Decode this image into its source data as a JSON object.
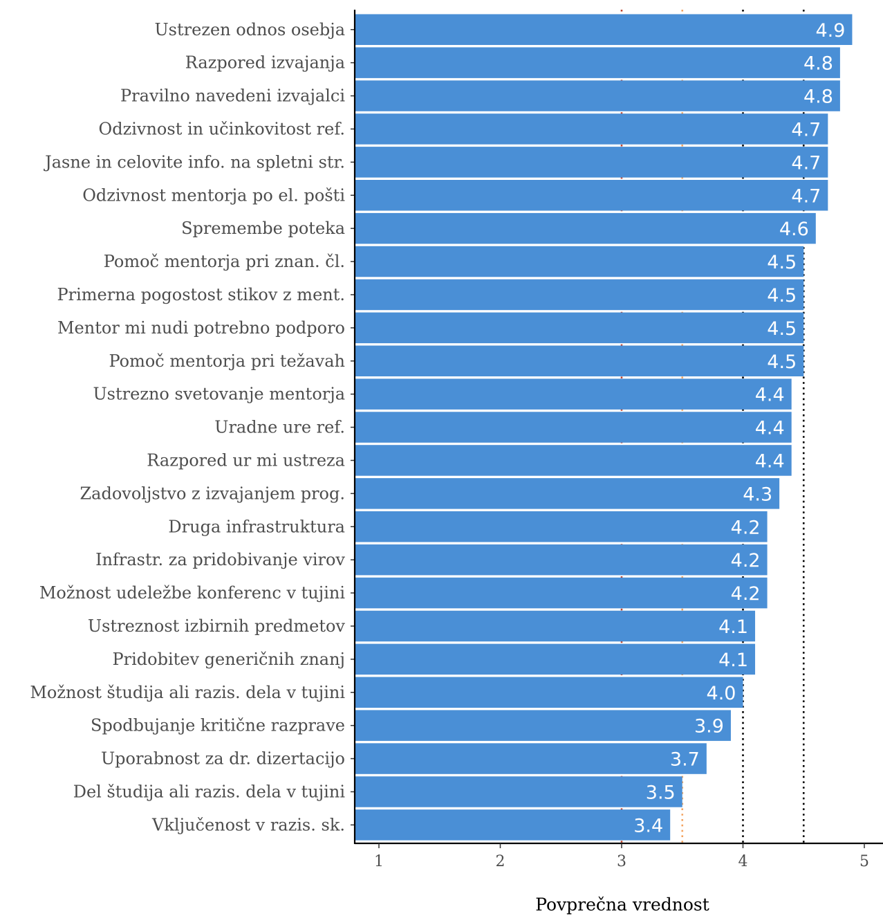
{
  "chart_data": {
    "type": "bar",
    "orientation": "horizontal",
    "categories": [
      "Ustrezen odnos osebja",
      "Razpored izvajanja",
      "Pravilno navedeni izvajalci",
      "Odzivnost in učinkovitost ref.",
      "Jasne in celovite info. na spletni str.",
      "Odzivnost mentorja po el. pošti",
      "Spremembe poteka",
      "Pomoč mentorja pri znan. čl.",
      "Primerna pogostost stikov z ment.",
      "Mentor mi nudi potrebno podporo",
      "Pomoč mentorja pri težavah",
      "Ustrezno svetovanje mentorja",
      "Uradne ure ref.",
      "Razpored ur mi ustreza",
      "Zadovoljstvo z izvajanjem prog.",
      "Druga infrastruktura",
      "Infrastr. za pridobivanje virov ",
      "Možnost udeležbe konferenc v tujini",
      "Ustreznost izbirnih predmetov",
      "Pridobitev generičnih znanj",
      "Možnost študija ali razis. dela v tujini",
      "Spodbujanje kritične razprave",
      "Uporabnost za dr. dizertacijo",
      "Del študija ali razis. dela v tujini",
      "Vključenost v razis. sk."
    ],
    "values": [
      4.9,
      4.8,
      4.8,
      4.7,
      4.7,
      4.7,
      4.6,
      4.5,
      4.5,
      4.5,
      4.5,
      4.4,
      4.4,
      4.4,
      4.3,
      4.2,
      4.2,
      4.2,
      4.1,
      4.1,
      4.0,
      3.9,
      3.7,
      3.5,
      3.4
    ],
    "data_labels": [
      "4.9",
      "4.8",
      "4.8",
      "4.7",
      "4.7",
      "4.7",
      "4.6",
      "4.5",
      "4.5",
      "4.5",
      "4.5",
      "4.4",
      "4.4",
      "4.4",
      "4.3",
      "4.2",
      "4.2",
      "4.2",
      "4.1",
      "4.1",
      "4.0",
      "3.9",
      "3.7",
      "3.5",
      "3.4"
    ],
    "xlabel": "Povprečna vrednost",
    "ylabel": "",
    "xlim": [
      0.8,
      5.15
    ],
    "xticks": [
      1,
      2,
      3,
      4,
      5
    ],
    "grid": false,
    "bar_color": "#4a8fd6",
    "reference_lines": [
      {
        "x": 3.0,
        "color": "#c0432c",
        "style": "dotted"
      },
      {
        "x": 3.5,
        "color": "#f4a460",
        "style": "dotted"
      },
      {
        "x": 4.0,
        "color": "#000000",
        "style": "dotted"
      },
      {
        "x": 4.5,
        "color": "#000000",
        "style": "dotted"
      }
    ]
  }
}
